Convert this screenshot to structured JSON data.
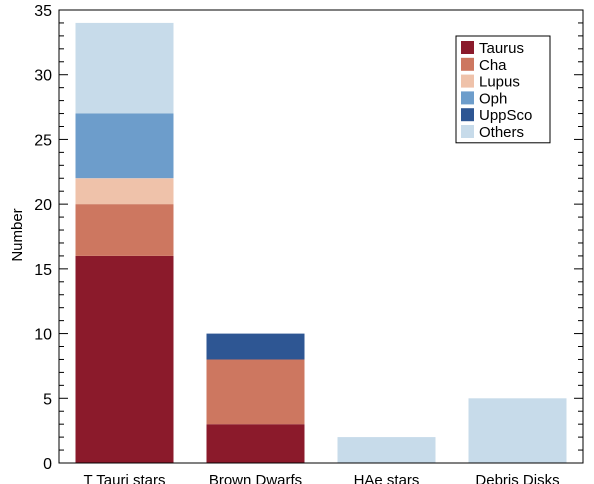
{
  "chart_data": {
    "type": "bar",
    "stacked": true,
    "title": "",
    "xlabel": "",
    "ylabel": "Number",
    "ylim": [
      0,
      35
    ],
    "yticks": [
      0,
      5,
      10,
      15,
      20,
      25,
      30,
      35
    ],
    "grid": false,
    "legend_position": "top-right",
    "categories": [
      "T Tauri stars",
      "Brown Dwarfs",
      "HAe stars",
      "Debris Disks"
    ],
    "series": [
      {
        "name": "Taurus",
        "color": "#8b1a2b",
        "values": [
          16,
          3,
          0,
          0
        ]
      },
      {
        "name": "Cha",
        "color": "#cd7760",
        "values": [
          4,
          5,
          0,
          0
        ]
      },
      {
        "name": "Lupus",
        "color": "#efc2aa",
        "values": [
          2,
          0,
          0,
          0
        ]
      },
      {
        "name": "Oph",
        "color": "#6d9dcb",
        "values": [
          5,
          0,
          0,
          0
        ]
      },
      {
        "name": "UppSco",
        "color": "#2e5693",
        "values": [
          0,
          2,
          0,
          0
        ]
      },
      {
        "name": "Others",
        "color": "#c7dbea",
        "values": [
          7,
          0,
          2,
          5
        ]
      }
    ]
  }
}
